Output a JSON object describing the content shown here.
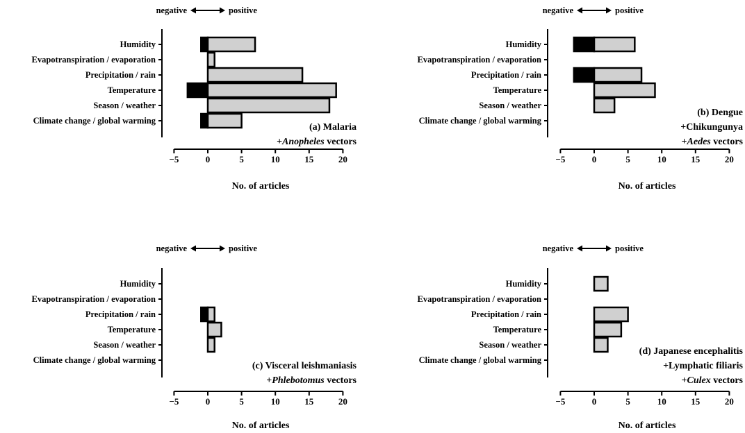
{
  "chart_data": [
    {
      "id": "a",
      "type": "bar",
      "orientation": "horizontal",
      "categories": [
        "Humidity",
        "Evapotranspiration / evaporation",
        "Precipitation / rain",
        "Temperature",
        "Season / weather",
        "Climate change / global warming"
      ],
      "series": [
        {
          "values": [
            -1,
            0,
            0,
            -3,
            0,
            -1
          ],
          "color": "#000000"
        },
        {
          "values": [
            7,
            1,
            14,
            19,
            18,
            5
          ],
          "color": "#d0d0d0"
        }
      ],
      "xlabel": "No. of articles",
      "xlim": [
        -5,
        20
      ],
      "xticks": [
        -5,
        0,
        5,
        10,
        15,
        20
      ],
      "direction": {
        "negative": "negative",
        "positive": "positive"
      },
      "panel_label": [
        [
          {
            "t": "(a) Malaria",
            "i": false
          }
        ],
        [
          {
            "t": "+",
            "i": false
          },
          {
            "t": "Anopheles",
            "i": true
          },
          {
            "t": " vectors",
            "i": false
          }
        ]
      ]
    },
    {
      "id": "b",
      "type": "bar",
      "orientation": "horizontal",
      "categories": [
        "Humidity",
        "Evapotranspiration / evaporation",
        "Precipitation / rain",
        "Temperature",
        "Season / weather",
        "Climate change / global warming"
      ],
      "series": [
        {
          "values": [
            -3,
            0,
            -3,
            0,
            0,
            0
          ],
          "color": "#000000"
        },
        {
          "values": [
            6,
            0,
            7,
            9,
            3,
            0
          ],
          "color": "#d0d0d0"
        }
      ],
      "xlabel": "No. of articles",
      "xlim": [
        -5,
        20
      ],
      "xticks": [
        -5,
        0,
        5,
        10,
        15,
        20
      ],
      "direction": {
        "negative": "negative",
        "positive": "positive"
      },
      "panel_label": [
        [
          {
            "t": "(b) Dengue",
            "i": false
          }
        ],
        [
          {
            "t": "+Chikungunya",
            "i": false
          }
        ],
        [
          {
            "t": "+",
            "i": false
          },
          {
            "t": "Aedes",
            "i": true
          },
          {
            "t": " vectors",
            "i": false
          }
        ]
      ]
    },
    {
      "id": "c",
      "type": "bar",
      "orientation": "horizontal",
      "categories": [
        "Humidity",
        "Evapotranspiration / evaporation",
        "Precipitation / rain",
        "Temperature",
        "Season / weather",
        "Climate change / global warming"
      ],
      "series": [
        {
          "values": [
            0,
            0,
            -1,
            0,
            0,
            0
          ],
          "color": "#000000"
        },
        {
          "values": [
            0,
            0,
            1,
            2,
            1,
            0
          ],
          "color": "#d0d0d0"
        }
      ],
      "xlabel": "No. of articles",
      "xlim": [
        -5,
        20
      ],
      "xticks": [
        -5,
        0,
        5,
        10,
        15,
        20
      ],
      "direction": {
        "negative": "negative",
        "positive": "positive"
      },
      "panel_label": [
        [
          {
            "t": "(c) Visceral leishmaniasis",
            "i": false
          }
        ],
        [
          {
            "t": "+",
            "i": false
          },
          {
            "t": "Phlebotomus",
            "i": true
          },
          {
            "t": " vectors",
            "i": false
          }
        ]
      ]
    },
    {
      "id": "d",
      "type": "bar",
      "orientation": "horizontal",
      "categories": [
        "Humidity",
        "Evapotranspiration / evaporation",
        "Precipitation / rain",
        "Temperature",
        "Season / weather",
        "Climate change / global warming"
      ],
      "series": [
        {
          "values": [
            0,
            0,
            0,
            0,
            0,
            0
          ],
          "color": "#000000"
        },
        {
          "values": [
            2,
            0,
            5,
            4,
            2,
            0
          ],
          "color": "#d0d0d0"
        }
      ],
      "xlabel": "No. of articles",
      "xlim": [
        -5,
        20
      ],
      "xticks": [
        -5,
        0,
        5,
        10,
        15,
        20
      ],
      "direction": {
        "negative": "negative",
        "positive": "positive"
      },
      "panel_label": [
        [
          {
            "t": "(d) Japanese encephalitis",
            "i": false
          }
        ],
        [
          {
            "t": "+Lymphatic filiaris",
            "i": false
          }
        ],
        [
          {
            "t": "+",
            "i": false
          },
          {
            "t": "Culex",
            "i": true
          },
          {
            "t": " vectors",
            "i": false
          }
        ]
      ]
    }
  ]
}
